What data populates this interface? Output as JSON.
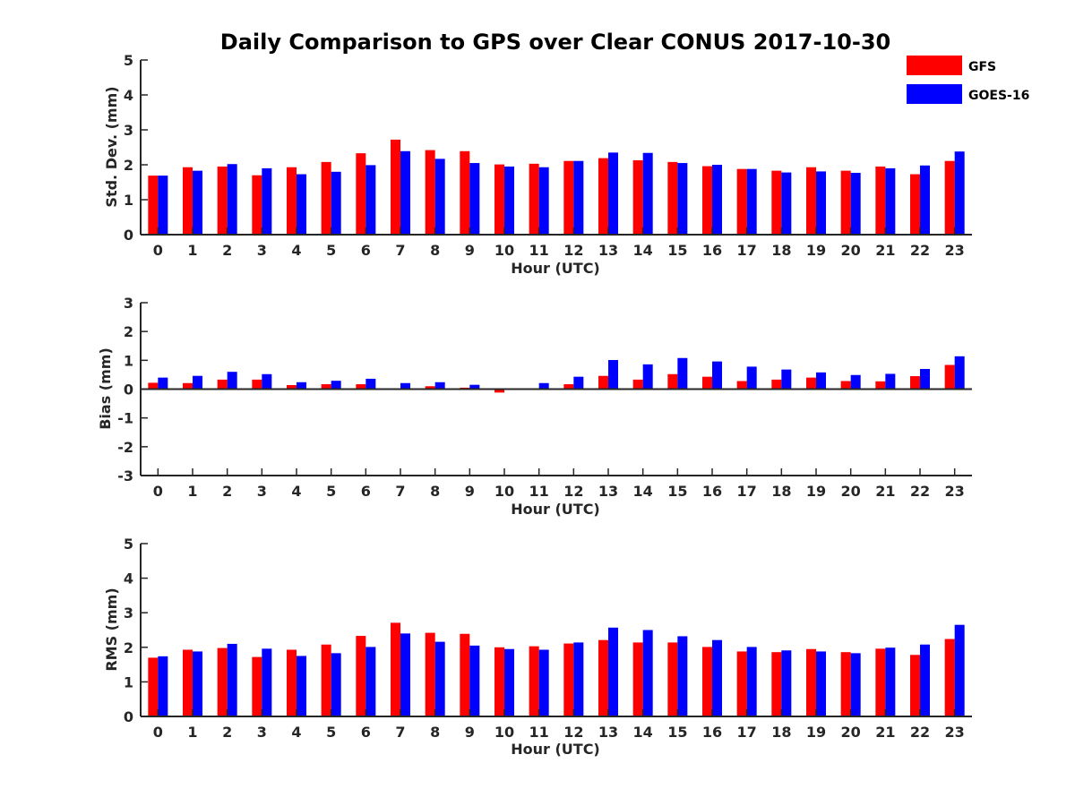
{
  "chart_data": {
    "title": "Daily Comparison to GPS over Clear CONUS 2017-10-30",
    "legend": {
      "placement": "top-right",
      "entries": [
        {
          "name": "GFS",
          "color": "#ff0000"
        },
        {
          "name": "GOES-16",
          "color": "#0000ff"
        }
      ]
    },
    "panels": [
      {
        "type": "bar",
        "ylabel": "Std. Dev. (mm)",
        "xlabel": "Hour (UTC)",
        "ylim": [
          0,
          5
        ],
        "yticks": [
          0,
          1,
          2,
          3,
          4,
          5
        ],
        "categories": [
          "0",
          "1",
          "2",
          "3",
          "4",
          "5",
          "6",
          "7",
          "8",
          "9",
          "10",
          "11",
          "12",
          "13",
          "14",
          "15",
          "16",
          "17",
          "18",
          "19",
          "20",
          "21",
          "22",
          "23"
        ],
        "series": [
          {
            "name": "GFS",
            "color": "#ff0000",
            "values": [
              1.69,
              1.93,
              1.95,
              1.7,
              1.93,
              2.08,
              2.33,
              2.72,
              2.42,
              2.39,
              2.01,
              2.03,
              2.11,
              2.19,
              2.13,
              2.08,
              1.96,
              1.88,
              1.83,
              1.93,
              1.83,
              1.95,
              1.73,
              2.11
            ]
          },
          {
            "name": "GOES-16",
            "color": "#0000ff",
            "values": [
              1.69,
              1.83,
              2.02,
              1.9,
              1.73,
              1.8,
              1.99,
              2.39,
              2.17,
              2.05,
              1.95,
              1.93,
              2.11,
              2.35,
              2.34,
              2.05,
              2.0,
              1.88,
              1.78,
              1.81,
              1.77,
              1.9,
              1.98,
              2.38
            ]
          }
        ]
      },
      {
        "type": "bar",
        "ylabel": "Bias (mm)",
        "xlabel": "Hour (UTC)",
        "ylim": [
          -3,
          3
        ],
        "yticks": [
          -3,
          -2,
          -1,
          0,
          1,
          2,
          3
        ],
        "zero_line": true,
        "categories": [
          "0",
          "1",
          "2",
          "3",
          "4",
          "5",
          "6",
          "7",
          "8",
          "9",
          "10",
          "11",
          "12",
          "13",
          "14",
          "15",
          "16",
          "17",
          "18",
          "19",
          "20",
          "21",
          "22",
          "23"
        ],
        "series": [
          {
            "name": "GFS",
            "color": "#ff0000",
            "values": [
              0.22,
              0.21,
              0.33,
              0.33,
              0.14,
              0.17,
              0.17,
              0.01,
              0.1,
              0.05,
              -0.12,
              0.03,
              0.17,
              0.46,
              0.33,
              0.52,
              0.43,
              0.28,
              0.33,
              0.4,
              0.28,
              0.27,
              0.45,
              0.84
            ]
          },
          {
            "name": "GOES-16",
            "color": "#0000ff",
            "values": [
              0.4,
              0.46,
              0.6,
              0.52,
              0.24,
              0.29,
              0.36,
              0.21,
              0.24,
              0.15,
              0.0,
              0.21,
              0.43,
              1.01,
              0.86,
              1.08,
              0.96,
              0.78,
              0.68,
              0.58,
              0.49,
              0.53,
              0.7,
              1.14
            ]
          }
        ]
      },
      {
        "type": "bar",
        "ylabel": "RMS (mm)",
        "xlabel": "Hour (UTC)",
        "ylim": [
          0,
          5
        ],
        "yticks": [
          0,
          1,
          2,
          3,
          4,
          5
        ],
        "categories": [
          "0",
          "1",
          "2",
          "3",
          "4",
          "5",
          "6",
          "7",
          "8",
          "9",
          "10",
          "11",
          "12",
          "13",
          "14",
          "15",
          "16",
          "17",
          "18",
          "19",
          "20",
          "21",
          "22",
          "23"
        ],
        "series": [
          {
            "name": "GFS",
            "color": "#ff0000",
            "values": [
              1.7,
              1.93,
              1.98,
              1.72,
              1.93,
              2.08,
              2.33,
              2.71,
              2.42,
              2.39,
              2.0,
              2.03,
              2.11,
              2.21,
              2.14,
              2.14,
              2.01,
              1.88,
              1.86,
              1.95,
              1.86,
              1.96,
              1.78,
              2.24
            ]
          },
          {
            "name": "GOES-16",
            "color": "#0000ff",
            "values": [
              1.74,
              1.88,
              2.1,
              1.96,
              1.75,
              1.83,
              2.01,
              2.4,
              2.16,
              2.05,
              1.95,
              1.93,
              2.14,
              2.57,
              2.5,
              2.32,
              2.21,
              2.01,
              1.91,
              1.88,
              1.83,
              1.99,
              2.08,
              2.65
            ]
          }
        ]
      }
    ]
  }
}
